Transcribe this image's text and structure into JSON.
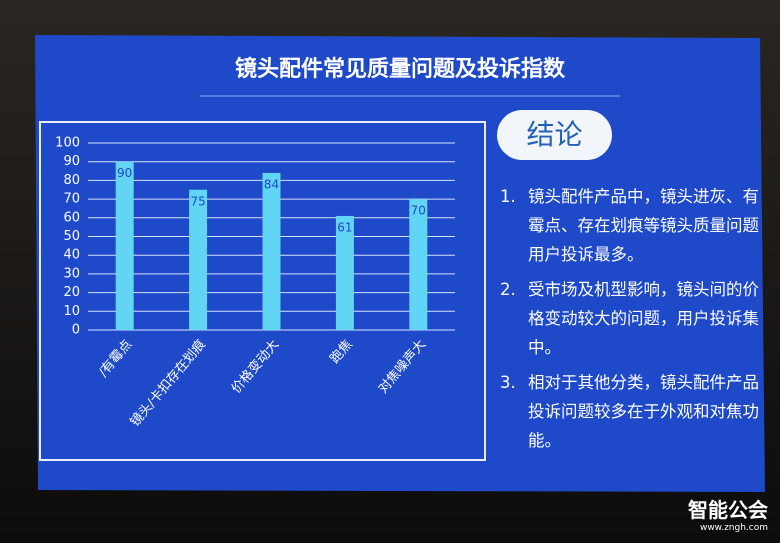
{
  "chart_data": {
    "type": "bar",
    "title": "镜头配件常见质量问题及投诉指数",
    "categories": [
      "/有霉点",
      "镜头/卡扣存在划痕",
      "价格变动大",
      "跑焦",
      "对焦噪声大"
    ],
    "values": [
      90,
      75,
      84,
      61,
      70
    ],
    "color": "#62d4f4",
    "ylim": [
      0,
      100
    ],
    "yticks": [
      0,
      10,
      20,
      30,
      40,
      50,
      60,
      70,
      80,
      90,
      100
    ],
    "grid": true
  },
  "conclusion": {
    "heading": "结论",
    "items": [
      {
        "number": "1.",
        "text": "镜头配件产品中，镜头进灰、有霉点、存在划痕等镜头质量问题用户投诉最多。"
      },
      {
        "number": "2.",
        "text": "受市场及机型影响，镜头间的价格变动较大的问题，用户投诉集中。"
      },
      {
        "number": "3.",
        "text": "相对于其他分类，镜头配件产品投诉问题较多在于外观和对焦功能。"
      }
    ]
  },
  "watermark": {
    "name": "智能公会",
    "url": "www.zngh.com"
  }
}
